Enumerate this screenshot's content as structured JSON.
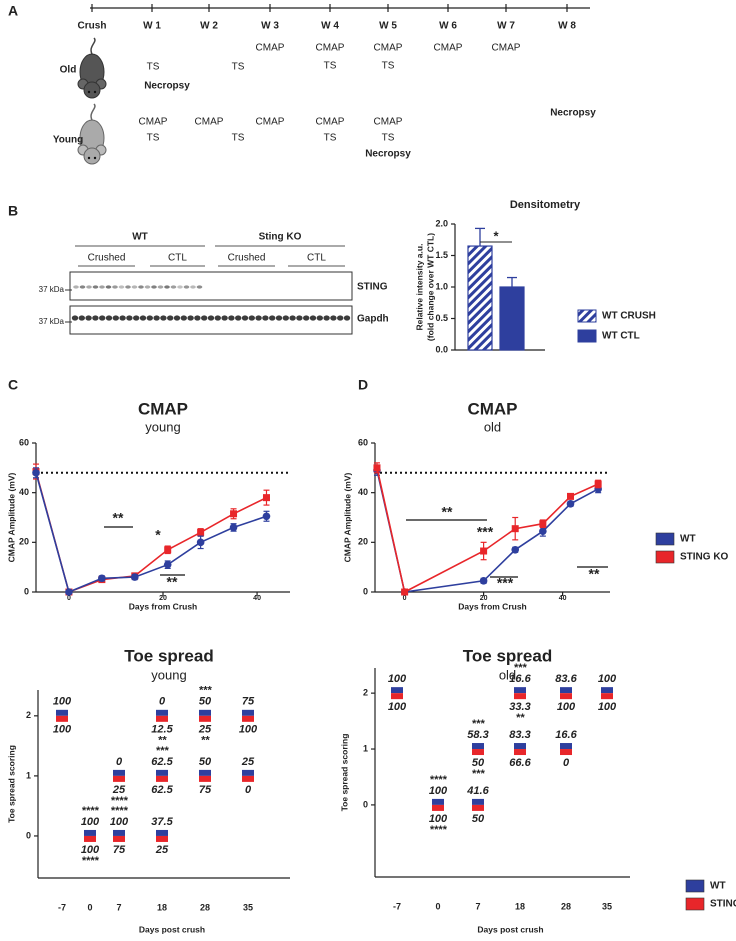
{
  "panels": [
    "A",
    "B",
    "C",
    "D"
  ],
  "timeline": {
    "columns": [
      "Crush",
      "W 1",
      "W 2",
      "W 3",
      "W 4",
      "W 5",
      "W 6",
      "W 7",
      "W 8"
    ],
    "rows": [
      {
        "label": "Old",
        "events": [
          "TS",
          "TS",
          "CMAP",
          "CMAP",
          "TS",
          "CMAP",
          "TS",
          "CMAP",
          "CMAP",
          "Necropsy",
          "Necropsy"
        ]
      },
      {
        "label": "Young",
        "events": [
          "CMAP",
          "TS",
          "CMAP",
          "TS",
          "CMAP",
          "CMAP",
          "TS",
          "CMAP",
          "TS",
          "Necropsy"
        ]
      }
    ]
  },
  "blot": {
    "groups": [
      {
        "label": "WT",
        "conditions": [
          "Crushed",
          "CTL"
        ]
      },
      {
        "label": "Sting KO",
        "conditions": [
          "Crushed",
          "CTL"
        ]
      }
    ],
    "rows": [
      {
        "marker": "37 kDa",
        "protein": "STING"
      },
      {
        "marker": "37 kDa",
        "protein": "Gapdh"
      }
    ]
  },
  "chart_data": [
    {
      "type": "bar",
      "title": "Densitometry",
      "ylabel": [
        "Relative intensity a.u.",
        "(fold change over WT CTL)"
      ],
      "categories": [
        "WT CRUSH",
        "WT CTL"
      ],
      "values": [
        1.65,
        1.0
      ],
      "errors": [
        0.28,
        0.15
      ],
      "colors": [
        "#2e3f9e",
        "#2e3f9e"
      ],
      "patterns": [
        "hatch",
        "solid"
      ],
      "ylim": [
        0,
        2
      ],
      "yticks": [
        {
          "value": 0,
          "label": "0.0"
        },
        {
          "value": 0.5,
          "label": "0.5"
        },
        {
          "value": 1,
          "label": "1.0"
        },
        {
          "value": 1.5,
          "label": "1.5"
        },
        {
          "value": 2,
          "label": "2.0"
        }
      ],
      "annotation": "*",
      "legend": "right"
    },
    {
      "type": "line",
      "title": "CMAP",
      "subtitle": "young",
      "xlabel": "Days from Crush",
      "ylabel": "CMAP Amplitude (mV)",
      "x": [
        -7,
        0,
        7,
        14,
        21,
        28,
        35,
        42
      ],
      "xlim": [
        -7,
        47
      ],
      "xticks": [
        0,
        20,
        40
      ],
      "ylim": [
        0,
        60
      ],
      "yticks": [
        0,
        20,
        40,
        60
      ],
      "reference": 48,
      "series": [
        {
          "color": "#e8262a",
          "marker": "square",
          "values": [
            48.5,
            0,
            5,
            6.5,
            17,
            24,
            31.5,
            38
          ],
          "errors": [
            3,
            0.5,
            1,
            1,
            1.5,
            1.5,
            2,
            3
          ]
        },
        {
          "color": "#2e3f9e",
          "marker": "circle",
          "values": [
            48,
            0,
            5.5,
            6,
            11,
            20,
            26,
            30.5
          ],
          "errors": [
            2,
            0.5,
            1,
            1,
            1.5,
            2.5,
            1.5,
            2
          ]
        }
      ],
      "annotations": [
        {
          "text": "**",
          "color": "#e8262a"
        },
        {
          "text": "*",
          "color": "#000000"
        },
        {
          "text": "**",
          "color": "#2e3f9e"
        }
      ]
    },
    {
      "type": "line",
      "title": "CMAP",
      "subtitle": "old",
      "xlabel": "Days from Crush",
      "ylabel": "CMAP Amplitude (mV)",
      "x": [
        -7,
        0,
        20,
        28,
        35,
        42,
        49
      ],
      "xlim": [
        -7.5,
        52
      ],
      "xticks": [
        0,
        20,
        40
      ],
      "ylim": [
        0,
        60
      ],
      "yticks": [
        0,
        20,
        40,
        60
      ],
      "reference": 48,
      "series": [
        {
          "name": "WT",
          "color": "#2e3f9e",
          "marker": "circle",
          "values": [
            49,
            0,
            4.5,
            17,
            24.5,
            35.5,
            41.5
          ],
          "errors": [
            2,
            0.5,
            1,
            1,
            2,
            1,
            1.5
          ]
        },
        {
          "name": "STING KO",
          "color": "#e8262a",
          "marker": "square",
          "values": [
            50,
            0,
            16.5,
            25.5,
            27.5,
            38.5,
            43.5
          ],
          "errors": [
            2,
            0.5,
            3.5,
            4.5,
            1.5,
            1,
            1.5
          ]
        }
      ],
      "annotations": [
        {
          "text": "**",
          "color": "#e8262a"
        },
        {
          "text": "***",
          "color": "#000000"
        },
        {
          "text": "***",
          "color": "#2e3f9e"
        },
        {
          "text": "**",
          "color": "#2e3f9e"
        }
      ],
      "legend": "right"
    },
    {
      "type": "dotplot",
      "title": "Toe spread",
      "subtitle": "young",
      "xlabel": "Days post crush",
      "ylabel": "Toe spread scoring",
      "ylim": [
        -0.7,
        2.43
      ],
      "yticks": [
        0,
        1,
        2
      ],
      "series": [
        {
          "color": "#2e3f9e"
        },
        {
          "color": "#e8262a"
        }
      ],
      "groups": [
        {
          "category": "-7",
          "points": [
            {
              "score": 2,
              "wt": 100,
              "ko": 100
            }
          ]
        },
        {
          "category": "0",
          "points": [
            {
              "score": 0,
              "wt_sig": "****",
              "wt": 100,
              "ko": 100,
              "ko_sig": "****"
            }
          ]
        },
        {
          "category": "7",
          "points": [
            {
              "score": 1,
              "wt": 0,
              "ko": 25,
              "ko_sig": "****"
            },
            {
              "score": 0,
              "wt_sig": "****",
              "wt": 100,
              "ko": 75
            }
          ]
        },
        {
          "category": "18",
          "points": [
            {
              "score": 2,
              "wt": 0,
              "ko": 12.5,
              "ko_sig": "**"
            },
            {
              "score": 1,
              "wt_sig": "***",
              "wt": 62.5,
              "ko": 62.5
            },
            {
              "score": 0,
              "wt": 37.5,
              "ko": 25
            }
          ]
        },
        {
          "category": "28",
          "points": [
            {
              "score": 2,
              "wt_sig": "***",
              "wt": 50,
              "ko": 25,
              "ko_sig": "**"
            },
            {
              "score": 1,
              "wt": 50,
              "ko": 75
            }
          ]
        },
        {
          "category": "35",
          "points": [
            {
              "score": 2,
              "wt": 75,
              "ko": 100
            },
            {
              "score": 1,
              "wt": 25,
              "ko": 0
            }
          ]
        }
      ]
    },
    {
      "type": "dotplot",
      "title": "Toe spread",
      "subtitle": "old",
      "xlabel": "Days post crush",
      "ylabel": "Toe spread scoring",
      "ylim": [
        -1.29,
        2.45
      ],
      "yticks": [
        0,
        1,
        2
      ],
      "series": [
        {
          "name": "WT",
          "color": "#2e3f9e"
        },
        {
          "name": "STING KO",
          "color": "#e8262a"
        }
      ],
      "groups": [
        {
          "category": "-7",
          "points": [
            {
              "score": 2,
              "wt": 100,
              "ko": 100
            }
          ]
        },
        {
          "category": "0",
          "points": [
            {
              "score": 0,
              "wt_sig": "****",
              "wt": 100,
              "ko": 100,
              "ko_sig": "****"
            }
          ]
        },
        {
          "category": "7",
          "points": [
            {
              "score": 1,
              "wt_sig": "***",
              "wt": 58.3,
              "ko": 50,
              "ko_sig": "***"
            },
            {
              "score": 0,
              "wt": 41.6,
              "ko": 50
            }
          ]
        },
        {
          "category": "18",
          "points": [
            {
              "score": 2,
              "wt_sig": "***",
              "wt": 16.6,
              "ko": 33.3,
              "ko_sig": "**"
            },
            {
              "score": 1,
              "wt": 83.3,
              "ko": 66.6
            }
          ]
        },
        {
          "category": "28",
          "points": [
            {
              "score": 2,
              "wt": 83.6,
              "ko": 100
            },
            {
              "score": 1,
              "wt": 16.6,
              "ko": 0
            }
          ]
        },
        {
          "category": "35",
          "points": [
            {
              "score": 2,
              "wt": 100,
              "ko": 100
            }
          ]
        }
      ],
      "legend": "bottom-right"
    }
  ]
}
